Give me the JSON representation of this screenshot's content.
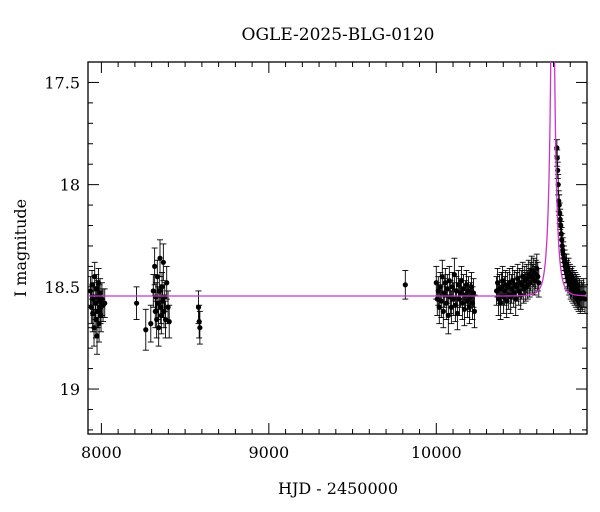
{
  "chart_data": {
    "type": "scatter",
    "title": "OGLE-2025-BLG-0120",
    "xlabel": "HJD - 2450000",
    "ylabel": "I magnitude",
    "xlim": [
      7920,
      10900
    ],
    "ylim": [
      19.22,
      17.4
    ],
    "y_inverted": true,
    "x_ticks": [
      8000,
      9000,
      10000
    ],
    "y_ticks": [
      17.5,
      18,
      18.5,
      19
    ],
    "x_tick_labels": [
      "8000",
      "9000",
      "10000"
    ],
    "y_tick_labels": [
      "17.5",
      "18",
      "18.5",
      "19"
    ],
    "x_minor_step": 100,
    "y_minor_step": 0.1,
    "grid": false,
    "legend": "none",
    "colors": {
      "data": "#000000",
      "model": "#cc33cc",
      "frame": "#000000"
    },
    "model": {
      "name": "",
      "baseline_mag": 18.545,
      "t0": 10695,
      "u0": 0.05,
      "tE": 32,
      "fs": 1.0
    },
    "series": [
      {
        "name": "",
        "points": [
          [
            7935,
            18.52,
            0.07
          ],
          [
            7940,
            18.6,
            0.08
          ],
          [
            7944,
            18.49,
            0.07
          ],
          [
            7948,
            18.63,
            0.09
          ],
          [
            7952,
            18.56,
            0.08
          ],
          [
            7956,
            18.7,
            0.09
          ],
          [
            7960,
            18.45,
            0.07
          ],
          [
            7963,
            18.58,
            0.08
          ],
          [
            7967,
            18.66,
            0.09
          ],
          [
            7970,
            18.51,
            0.07
          ],
          [
            7974,
            18.74,
            0.09
          ],
          [
            7977,
            18.55,
            0.08
          ],
          [
            7980,
            18.62,
            0.08
          ],
          [
            7983,
            18.48,
            0.07
          ],
          [
            7986,
            18.68,
            0.09
          ],
          [
            7989,
            18.57,
            0.08
          ],
          [
            7992,
            18.53,
            0.07
          ],
          [
            7995,
            18.6,
            0.08
          ],
          [
            7998,
            18.64,
            0.08
          ],
          [
            8003,
            18.56,
            0.08
          ],
          [
            8010,
            18.59,
            0.08
          ],
          [
            8020,
            18.58,
            0.07
          ],
          [
            8210,
            18.58,
            0.08
          ],
          [
            8265,
            18.71,
            0.1
          ],
          [
            8295,
            18.68,
            0.09
          ],
          [
            8310,
            18.52,
            0.08
          ],
          [
            8318,
            18.4,
            0.09
          ],
          [
            8322,
            18.62,
            0.08
          ],
          [
            8326,
            18.55,
            0.07
          ],
          [
            8330,
            18.66,
            0.09
          ],
          [
            8334,
            18.45,
            0.08
          ],
          [
            8338,
            18.58,
            0.08
          ],
          [
            8342,
            18.7,
            0.09
          ],
          [
            8346,
            18.52,
            0.07
          ],
          [
            8350,
            18.36,
            0.09
          ],
          [
            8354,
            18.6,
            0.08
          ],
          [
            8358,
            18.64,
            0.09
          ],
          [
            8362,
            18.5,
            0.07
          ],
          [
            8366,
            18.57,
            0.08
          ],
          [
            8370,
            18.38,
            0.09
          ],
          [
            8374,
            18.62,
            0.08
          ],
          [
            8378,
            18.55,
            0.07
          ],
          [
            8383,
            18.66,
            0.09
          ],
          [
            8390,
            18.48,
            0.08
          ],
          [
            8398,
            18.6,
            0.08
          ],
          [
            8405,
            18.67,
            0.08
          ],
          [
            8580,
            18.6,
            0.08
          ],
          [
            8584,
            18.67,
            0.08
          ],
          [
            8588,
            18.7,
            0.08
          ],
          [
            9815,
            18.49,
            0.07
          ],
          [
            10000,
            18.48,
            0.08
          ],
          [
            10006,
            18.56,
            0.08
          ],
          [
            10012,
            18.52,
            0.07
          ],
          [
            10018,
            18.6,
            0.08
          ],
          [
            10024,
            18.5,
            0.07
          ],
          [
            10030,
            18.57,
            0.08
          ],
          [
            10036,
            18.45,
            0.08
          ],
          [
            10042,
            18.62,
            0.08
          ],
          [
            10048,
            18.53,
            0.07
          ],
          [
            10054,
            18.48,
            0.07
          ],
          [
            10060,
            18.58,
            0.08
          ],
          [
            10066,
            18.51,
            0.07
          ],
          [
            10072,
            18.64,
            0.09
          ],
          [
            10078,
            18.47,
            0.07
          ],
          [
            10084,
            18.55,
            0.08
          ],
          [
            10090,
            18.6,
            0.08
          ],
          [
            10096,
            18.5,
            0.07
          ],
          [
            10102,
            18.56,
            0.08
          ],
          [
            10108,
            18.44,
            0.08
          ],
          [
            10114,
            18.59,
            0.08
          ],
          [
            10120,
            18.52,
            0.07
          ],
          [
            10126,
            18.63,
            0.08
          ],
          [
            10132,
            18.49,
            0.07
          ],
          [
            10138,
            18.56,
            0.08
          ],
          [
            10144,
            18.53,
            0.07
          ],
          [
            10150,
            18.47,
            0.07
          ],
          [
            10156,
            18.58,
            0.08
          ],
          [
            10162,
            18.51,
            0.07
          ],
          [
            10168,
            18.61,
            0.08
          ],
          [
            10174,
            18.54,
            0.07
          ],
          [
            10180,
            18.49,
            0.07
          ],
          [
            10186,
            18.57,
            0.08
          ],
          [
            10192,
            18.52,
            0.07
          ],
          [
            10198,
            18.6,
            0.08
          ],
          [
            10204,
            18.55,
            0.07
          ],
          [
            10210,
            18.5,
            0.07
          ],
          [
            10216,
            18.58,
            0.08
          ],
          [
            10222,
            18.53,
            0.07
          ],
          [
            10228,
            18.62,
            0.08
          ],
          [
            10360,
            18.52,
            0.07
          ],
          [
            10366,
            18.48,
            0.07
          ],
          [
            10372,
            18.56,
            0.08
          ],
          [
            10378,
            18.51,
            0.07
          ],
          [
            10384,
            18.58,
            0.08
          ],
          [
            10390,
            18.5,
            0.07
          ],
          [
            10396,
            18.47,
            0.07
          ],
          [
            10402,
            18.55,
            0.08
          ],
          [
            10408,
            18.52,
            0.07
          ],
          [
            10414,
            18.49,
            0.07
          ],
          [
            10420,
            18.57,
            0.08
          ],
          [
            10426,
            18.5,
            0.07
          ],
          [
            10432,
            18.54,
            0.07
          ],
          [
            10438,
            18.48,
            0.07
          ],
          [
            10444,
            18.55,
            0.08
          ],
          [
            10450,
            18.51,
            0.07
          ],
          [
            10456,
            18.47,
            0.07
          ],
          [
            10462,
            18.53,
            0.07
          ],
          [
            10468,
            18.49,
            0.07
          ],
          [
            10474,
            18.56,
            0.08
          ],
          [
            10480,
            18.5,
            0.07
          ],
          [
            10486,
            18.46,
            0.07
          ],
          [
            10492,
            18.52,
            0.07
          ],
          [
            10498,
            18.48,
            0.07
          ],
          [
            10504,
            18.54,
            0.07
          ],
          [
            10510,
            18.49,
            0.07
          ],
          [
            10516,
            18.45,
            0.07
          ],
          [
            10522,
            18.51,
            0.07
          ],
          [
            10528,
            18.47,
            0.07
          ],
          [
            10534,
            18.5,
            0.07
          ],
          [
            10540,
            18.46,
            0.07
          ],
          [
            10546,
            18.49,
            0.07
          ],
          [
            10552,
            18.44,
            0.07
          ],
          [
            10558,
            18.48,
            0.07
          ],
          [
            10564,
            18.45,
            0.07
          ],
          [
            10570,
            18.42,
            0.07
          ],
          [
            10576,
            18.46,
            0.07
          ],
          [
            10582,
            18.43,
            0.07
          ],
          [
            10588,
            18.47,
            0.07
          ],
          [
            10594,
            18.44,
            0.07
          ],
          [
            10600,
            18.41,
            0.07
          ],
          [
            10606,
            18.45,
            0.07
          ],
          [
            10612,
            18.48,
            0.07
          ],
          [
            10720,
            17.82,
            0.04
          ],
          [
            10722,
            17.87,
            0.04
          ],
          [
            10725,
            17.93,
            0.04
          ],
          [
            10728,
            18.0,
            0.05
          ],
          [
            10731,
            18.08,
            0.05
          ],
          [
            10734,
            18.1,
            0.05
          ],
          [
            10737,
            18.14,
            0.05
          ],
          [
            10740,
            18.17,
            0.05
          ],
          [
            10743,
            18.2,
            0.05
          ],
          [
            10746,
            18.24,
            0.06
          ],
          [
            10749,
            18.27,
            0.06
          ],
          [
            10752,
            18.3,
            0.06
          ],
          [
            10755,
            18.32,
            0.06
          ],
          [
            10758,
            18.34,
            0.06
          ],
          [
            10762,
            18.36,
            0.06
          ],
          [
            10766,
            18.38,
            0.06
          ],
          [
            10770,
            18.4,
            0.06
          ],
          [
            10774,
            18.42,
            0.06
          ],
          [
            10778,
            18.41,
            0.07
          ],
          [
            10782,
            18.44,
            0.07
          ],
          [
            10786,
            18.45,
            0.07
          ],
          [
            10790,
            18.43,
            0.07
          ],
          [
            10794,
            18.47,
            0.07
          ],
          [
            10798,
            18.46,
            0.07
          ],
          [
            10802,
            18.49,
            0.07
          ],
          [
            10806,
            18.48,
            0.07
          ],
          [
            10810,
            18.5,
            0.07
          ],
          [
            10814,
            18.47,
            0.07
          ],
          [
            10818,
            18.51,
            0.07
          ],
          [
            10822,
            18.49,
            0.07
          ],
          [
            10826,
            18.52,
            0.07
          ],
          [
            10830,
            18.5,
            0.07
          ],
          [
            10834,
            18.53,
            0.07
          ],
          [
            10838,
            18.51,
            0.07
          ],
          [
            10842,
            18.54,
            0.07
          ],
          [
            10846,
            18.52,
            0.07
          ],
          [
            10850,
            18.55,
            0.07
          ],
          [
            10855,
            18.53,
            0.07
          ],
          [
            10860,
            18.56,
            0.07
          ],
          [
            10866,
            18.54,
            0.07
          ],
          [
            10872,
            18.55,
            0.07
          ],
          [
            10880,
            18.53,
            0.07
          ],
          [
            10888,
            18.56,
            0.07
          ]
        ]
      }
    ]
  }
}
